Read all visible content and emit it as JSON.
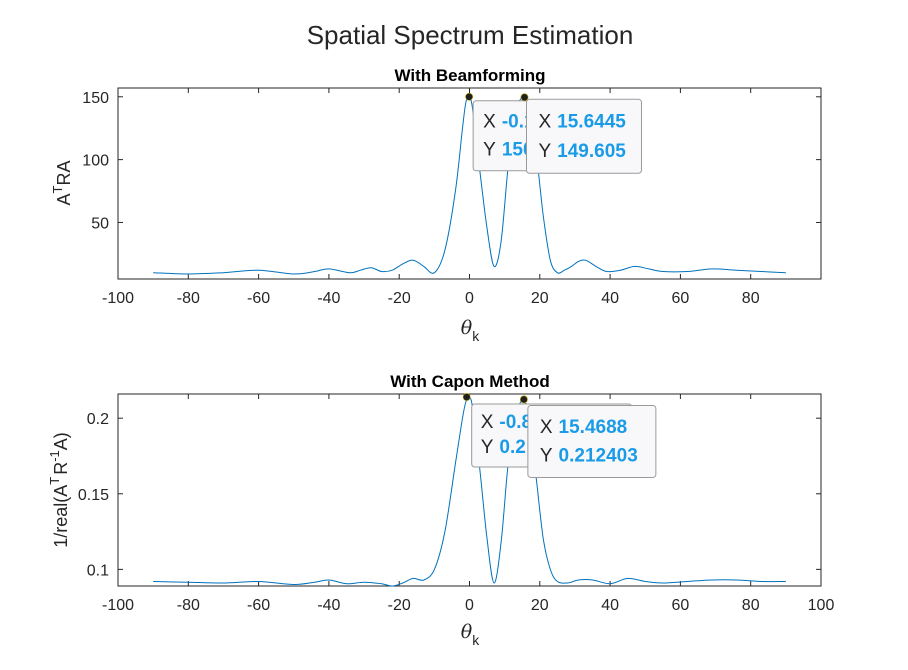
{
  "figure_title": "Spatial Spectrum Estimation",
  "colors": {
    "series": "#0072BD",
    "datatip_value": "#1a9be8",
    "axes": "#262626"
  },
  "chart_data": [
    {
      "type": "line",
      "title": "With Beamforming",
      "xlabel": "θ",
      "xlabel_sub": "k",
      "ylabel": "A",
      "ylabel_sup": "T",
      "ylabel_tail": "RA",
      "xlim": [
        -100,
        100
      ],
      "ylim": [
        5,
        157
      ],
      "xticks": [
        -100,
        -80,
        -60,
        -40,
        -20,
        0,
        20,
        40,
        60,
        80
      ],
      "xtick_labels": [
        "-100",
        "-80",
        "-60",
        "-40",
        "-20",
        "0",
        "20",
        "40",
        "60",
        "80"
      ],
      "yticks": [
        50,
        100,
        150
      ],
      "ytick_labels": [
        "50",
        "100",
        "150"
      ],
      "series": [
        {
          "x": [
            -90,
            -80,
            -70,
            -60,
            -50,
            -44,
            -40,
            -34,
            -31,
            -28,
            -25,
            -22,
            -19,
            -16,
            -13,
            -10,
            -7,
            -4,
            -2,
            -1,
            0,
            1,
            3,
            5,
            7,
            9,
            11,
            13,
            14,
            15.6445,
            17,
            19,
            21,
            23,
            25,
            27,
            29,
            31,
            33,
            36,
            39,
            43,
            47,
            51,
            55,
            62,
            69,
            76,
            83,
            90
          ],
          "y": [
            10,
            9,
            10,
            12,
            9,
            11,
            13,
            10,
            12,
            14,
            11,
            12,
            17,
            20,
            15,
            10,
            28,
            75,
            125,
            146,
            150,
            138,
            90,
            45,
            15,
            35,
            95,
            138,
            146,
            149.605,
            140,
            105,
            55,
            20,
            10,
            12,
            15,
            19,
            20,
            15,
            11,
            12,
            15,
            13,
            11,
            11,
            13,
            12,
            11,
            10
          ]
        }
      ],
      "datatips": [
        {
          "x_label": "X",
          "x_value": "-0.1",
          "y_label": "Y",
          "y_value": "150",
          "x": -0.1,
          "y": 150
        },
        {
          "x_label": "X",
          "x_value": "15.6445",
          "y_label": "Y",
          "y_value": "149.605",
          "x": 15.6445,
          "y": 149.605
        }
      ],
      "grid": false
    },
    {
      "type": "line",
      "title": "With Capon Method",
      "xlabel": "θ",
      "xlabel_sub": "k",
      "ylabel": "1/real(A",
      "ylabel_sup1": "T",
      "ylabel_mid": "R",
      "ylabel_sup2": "-1",
      "ylabel_tail": "A)",
      "xlim": [
        -100,
        100
      ],
      "ylim": [
        0.089,
        0.216
      ],
      "xticks": [
        -100,
        -80,
        -60,
        -40,
        -20,
        0,
        20,
        40,
        60,
        80,
        100
      ],
      "xtick_labels": [
        "-100",
        "-80",
        "-60",
        "-40",
        "-20",
        "0",
        "20",
        "40",
        "60",
        "80",
        "100"
      ],
      "yticks": [
        0.1,
        0.15,
        0.2
      ],
      "ytick_labels": [
        "0.1",
        "0.15",
        "0.2"
      ],
      "series": [
        {
          "x": [
            -90,
            -80,
            -70,
            -60,
            -50,
            -44,
            -40,
            -35,
            -30,
            -25,
            -22,
            -19,
            -16,
            -13,
            -10,
            -7,
            -4,
            -2,
            -1,
            0,
            1,
            3,
            5,
            7,
            9,
            11,
            13,
            14,
            15.4688,
            17,
            19,
            21,
            23,
            25,
            28,
            31,
            35,
            40,
            45,
            50,
            55,
            62,
            69,
            76,
            83,
            90
          ],
          "y": [
            0.092,
            0.0915,
            0.091,
            0.092,
            0.09,
            0.0915,
            0.093,
            0.0905,
            0.0915,
            0.0905,
            0.089,
            0.091,
            0.094,
            0.093,
            0.1,
            0.125,
            0.17,
            0.2,
            0.211,
            0.214,
            0.205,
            0.165,
            0.12,
            0.091,
            0.118,
            0.17,
            0.2,
            0.208,
            0.212403,
            0.2,
            0.16,
            0.12,
            0.1,
            0.092,
            0.091,
            0.093,
            0.093,
            0.0905,
            0.094,
            0.092,
            0.091,
            0.092,
            0.093,
            0.093,
            0.092,
            0.092
          ]
        }
      ],
      "datatips": [
        {
          "x_label": "X",
          "x_value": "-0.8",
          "y_label": "Y",
          "y_value": "0.2",
          "x": -0.8,
          "y": 0.214
        },
        {
          "x_label": "X",
          "x_value": "15.4688",
          "y_label": "Y",
          "y_value": "0.212403",
          "x": 15.4688,
          "y": 0.212403
        }
      ],
      "grid": false
    }
  ]
}
